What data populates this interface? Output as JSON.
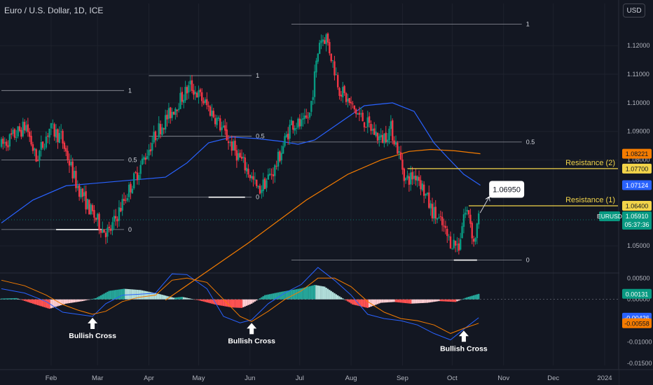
{
  "header": {
    "title": "Euro / U.S. Dollar, 1D, ICE",
    "currency_label": "USD"
  },
  "chart_data": {
    "type": "candlestick",
    "symbol": "EURUSD",
    "price_axis": {
      "ticks": [
        "1.12000",
        "1.11000",
        "1.10000",
        "1.09000",
        "1.08000",
        "1.05000"
      ],
      "tick_values": [
        1.12,
        1.11,
        1.1,
        1.09,
        1.08,
        1.05
      ],
      "ylim": [
        1.0405,
        1.1286
      ]
    },
    "macd_axis": {
      "ticks": [
        "0.00500",
        "0.00000",
        "-0.01000",
        "-0.01500"
      ],
      "tick_values": [
        0.005,
        0.0,
        -0.01,
        -0.015
      ],
      "ylim": [
        -0.0155,
        0.0062
      ]
    },
    "time_axis": {
      "labels": [
        "Feb",
        "Mar",
        "Apr",
        "May",
        "Jun",
        "Jul",
        "Aug",
        "Sep",
        "Oct",
        "Nov",
        "Dec",
        "2024"
      ],
      "day_index": [
        31,
        59,
        90,
        120,
        151,
        181,
        212,
        243,
        273,
        304,
        334,
        365
      ]
    },
    "candle_range": {
      "first_day": 1,
      "last_day": 289,
      "step_days": 1
    },
    "price_path": [
      [
        1,
        1.085
      ],
      [
        16,
        1.092
      ],
      [
        22,
        1.08
      ],
      [
        30,
        1.091
      ],
      [
        37,
        1.088
      ],
      [
        46,
        1.072
      ],
      [
        55,
        1.062
      ],
      [
        62,
        1.056
      ],
      [
        66,
        1.0545
      ],
      [
        75,
        1.066
      ],
      [
        85,
        1.078
      ],
      [
        95,
        1.09
      ],
      [
        110,
        1.102
      ],
      [
        115,
        1.106
      ],
      [
        121,
        1.102
      ],
      [
        130,
        1.095
      ],
      [
        140,
        1.085
      ],
      [
        150,
        1.076
      ],
      [
        156,
        1.069
      ],
      [
        166,
        1.077
      ],
      [
        176,
        1.093
      ],
      [
        183,
        1.092
      ],
      [
        187,
        1.096
      ],
      [
        193,
        1.122
      ],
      [
        197,
        1.123
      ],
      [
        205,
        1.105
      ],
      [
        213,
        1.098
      ],
      [
        221,
        1.093
      ],
      [
        230,
        1.087
      ],
      [
        236,
        1.091
      ],
      [
        240,
        1.084
      ],
      [
        245,
        1.073
      ],
      [
        252,
        1.075
      ],
      [
        260,
        1.063
      ],
      [
        267,
        1.057
      ],
      [
        271,
        1.052
      ],
      [
        277,
        1.05
      ],
      [
        280,
        1.061
      ],
      [
        283,
        1.062
      ],
      [
        286,
        1.051
      ],
      [
        289,
        1.0591
      ]
    ],
    "moving_averages": [
      {
        "color": "#2962ff",
        "points": [
          [
            1,
            1.058
          ],
          [
            20,
            1.066
          ],
          [
            40,
            1.071
          ],
          [
            60,
            1.072
          ],
          [
            80,
            1.073
          ],
          [
            100,
            1.074
          ],
          [
            113,
            1.079
          ],
          [
            126,
            1.086
          ],
          [
            140,
            1.088
          ],
          [
            155,
            1.0875
          ],
          [
            170,
            1.0865
          ],
          [
            180,
            1.0855
          ],
          [
            190,
            1.087
          ],
          [
            205,
            1.093
          ],
          [
            220,
            1.099
          ],
          [
            237,
            1.1
          ],
          [
            250,
            1.097
          ],
          [
            262,
            1.086
          ],
          [
            270,
            1.081
          ],
          [
            280,
            1.075
          ],
          [
            290,
            1.0712
          ]
        ]
      },
      {
        "color": "#f57c00",
        "points": [
          [
            100,
            1.031
          ],
          [
            150,
            1.051
          ],
          [
            185,
            1.066
          ],
          [
            210,
            1.075
          ],
          [
            230,
            1.08
          ],
          [
            247,
            1.083
          ],
          [
            260,
            1.0837
          ],
          [
            275,
            1.0832
          ],
          [
            290,
            1.0822
          ]
        ]
      }
    ],
    "fib_levels": [
      {
        "label": "1",
        "value": 1.1043,
        "x_from": 1,
        "x_to": 75
      },
      {
        "label": "0.5",
        "value": 1.08,
        "x_from": 1,
        "x_to": 75
      },
      {
        "label": "0",
        "value": 1.0557,
        "x_from": 1,
        "x_to": 75
      },
      {
        "label": "1",
        "value": 1.1095,
        "x_from": 90,
        "x_to": 152
      },
      {
        "label": "0.5",
        "value": 1.0883,
        "x_from": 90,
        "x_to": 152
      },
      {
        "label": "0",
        "value": 1.067,
        "x_from": 90,
        "x_to": 152
      },
      {
        "label": "1",
        "value": 1.1275,
        "x_from": 176,
        "x_to": 315
      },
      {
        "label": "0.5",
        "value": 1.0863,
        "x_from": 176,
        "x_to": 315
      },
      {
        "label": "0",
        "value": 1.045,
        "x_from": 176,
        "x_to": 315
      }
    ],
    "support_marks": [
      {
        "value": 1.0557,
        "x_from": 34,
        "x_to": 62
      },
      {
        "value": 1.067,
        "x_from": 126,
        "x_to": 148
      },
      {
        "value": 1.045,
        "x_from": 274,
        "x_to": 288
      }
    ],
    "resistances": [
      {
        "label": "Resistance (2)",
        "value": 1.077,
        "x_from": 246,
        "x_to": 375
      },
      {
        "label": "Resistance (1)",
        "value": 1.064,
        "x_from": 283,
        "x_to": 375
      }
    ],
    "target": {
      "label": "1.06950",
      "value": 1.0695,
      "x_from": 289,
      "x_to": 297
    },
    "price_badges": [
      {
        "label": "1.08221",
        "value": 1.0822,
        "color": "#f57c00",
        "text_color": "#131722"
      },
      {
        "label": "1.07700",
        "value": 1.077,
        "color": "#f2d44a",
        "text_color": "#131722"
      },
      {
        "label": "1.07124",
        "value": 1.0712,
        "color": "#2962ff",
        "text_color": "#ffffff"
      },
      {
        "label": "1.06400",
        "value": 1.064,
        "color": "#f2d44a",
        "text_color": "#131722"
      }
    ],
    "last_price": {
      "symbol": "EURUSD",
      "price": "1.05910",
      "countdown": "05:37:36",
      "value": 1.0591,
      "color": "#089981"
    },
    "macd": {
      "histogram_path": [
        [
          1,
          0.0002
        ],
        [
          10,
          0.0003
        ],
        [
          20,
          -0.001
        ],
        [
          30,
          -0.0022
        ],
        [
          40,
          -0.001
        ],
        [
          50,
          -0.0004
        ],
        [
          58,
          0.0003
        ],
        [
          66,
          0.002
        ],
        [
          75,
          0.0025
        ],
        [
          85,
          0.0022
        ],
        [
          95,
          0.0014
        ],
        [
          105,
          0.0004
        ],
        [
          110,
          0.0006
        ],
        [
          120,
          -0.0002
        ],
        [
          130,
          -0.0012
        ],
        [
          140,
          -0.0019
        ],
        [
          146,
          -0.002
        ],
        [
          152,
          -0.001
        ],
        [
          160,
          0.001
        ],
        [
          170,
          0.0018
        ],
        [
          182,
          0.0026
        ],
        [
          190,
          0.0034
        ],
        [
          196,
          0.003
        ],
        [
          203,
          0.0012
        ],
        [
          213,
          -0.0012
        ],
        [
          222,
          -0.002
        ],
        [
          230,
          -0.0008
        ],
        [
          238,
          -0.0006
        ],
        [
          248,
          -0.001
        ],
        [
          258,
          -0.0008
        ],
        [
          265,
          -0.0004
        ],
        [
          275,
          -0.0006
        ],
        [
          282,
          0.0005
        ],
        [
          289,
          0.0013
        ]
      ],
      "lines": [
        {
          "color": "#2962ff",
          "points": [
            [
              1,
              0.0025
            ],
            [
              15,
              0.0015
            ],
            [
              28,
              -0.0005
            ],
            [
              38,
              -0.003
            ],
            [
              47,
              -0.0035
            ],
            [
              56,
              -0.004
            ],
            [
              64,
              -0.001
            ],
            [
              74,
              0.001
            ],
            [
              84,
              0.0012
            ],
            [
              94,
              0.0015
            ],
            [
              104,
              0.006
            ],
            [
              113,
              0.0058
            ],
            [
              125,
              0.0025
            ],
            [
              135,
              -0.004
            ],
            [
              145,
              -0.0055
            ],
            [
              152,
              -0.0048
            ],
            [
              162,
              -0.001
            ],
            [
              172,
              0.0015
            ],
            [
              182,
              0.0035
            ],
            [
              192,
              0.0075
            ],
            [
              202,
              0.0045
            ],
            [
              212,
              0.001
            ],
            [
              222,
              -0.0035
            ],
            [
              232,
              -0.0045
            ],
            [
              242,
              -0.005
            ],
            [
              252,
              -0.006
            ],
            [
              262,
              -0.008
            ],
            [
              272,
              -0.0095
            ],
            [
              280,
              -0.007
            ],
            [
              289,
              -0.0043
            ]
          ]
        },
        {
          "color": "#f57c00",
          "points": [
            [
              1,
              0.0045
            ],
            [
              15,
              0.0032
            ],
            [
              28,
              0.001
            ],
            [
              38,
              -0.0012
            ],
            [
              47,
              -0.0025
            ],
            [
              56,
              -0.0035
            ],
            [
              64,
              -0.0028
            ],
            [
              74,
              -0.0005
            ],
            [
              84,
              0.0005
            ],
            [
              94,
              0.001
            ],
            [
              104,
              0.0045
            ],
            [
              113,
              0.005
            ],
            [
              125,
              0.004
            ],
            [
              135,
              0.0
            ],
            [
              145,
              -0.004
            ],
            [
              152,
              -0.0052
            ],
            [
              162,
              -0.0028
            ],
            [
              172,
              0.0
            ],
            [
              182,
              0.002
            ],
            [
              192,
              0.005
            ],
            [
              202,
              0.005
            ],
            [
              212,
              0.003
            ],
            [
              222,
              -0.0005
            ],
            [
              232,
              -0.003
            ],
            [
              242,
              -0.0045
            ],
            [
              252,
              -0.005
            ],
            [
              262,
              -0.006
            ],
            [
              272,
              -0.008
            ],
            [
              280,
              -0.0068
            ],
            [
              289,
              -0.0056
            ]
          ]
        }
      ],
      "zero_line": 0.0
    },
    "macd_badges": [
      {
        "label": "0.00131",
        "value": 0.0013,
        "color": "#089981",
        "text_color": "#ffffff"
      },
      {
        "label": "-0.00426",
        "value": -0.0043,
        "color": "#2962ff",
        "text_color": "#ffffff"
      },
      {
        "label": "-0.00558",
        "value": -0.0056,
        "color": "#f57c00",
        "text_color": "#131722"
      }
    ],
    "annotations": [
      {
        "label": "Bullish Cross",
        "x": 56,
        "value": -0.004
      },
      {
        "label": "Bullish Cross",
        "x": 152,
        "value": -0.0052
      },
      {
        "label": "Bullish Cross",
        "x": 280,
        "value": -0.007
      }
    ],
    "colors": {
      "up": "#089981",
      "down": "#f23645",
      "background": "#131722",
      "grid": "#1e222d"
    }
  }
}
